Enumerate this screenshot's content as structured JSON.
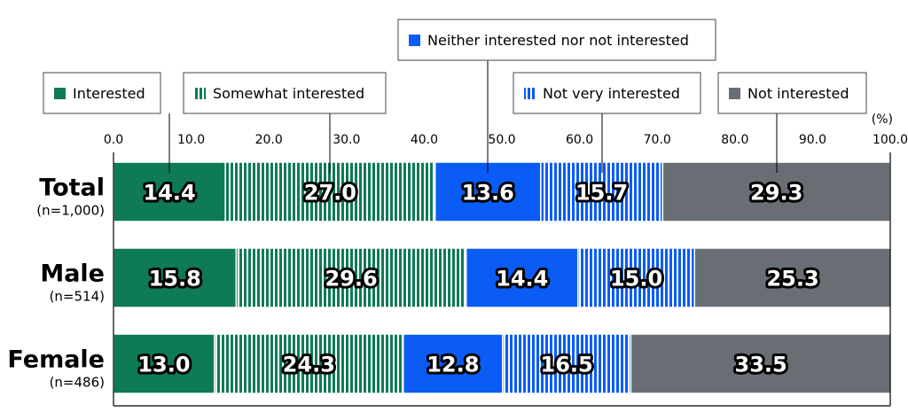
{
  "chart_data": {
    "type": "bar",
    "orientation": "horizontal",
    "stacked": true,
    "percent_axis": true,
    "unit_label": "(%)",
    "xlim": [
      0,
      100
    ],
    "ticks": [
      "0.0",
      "10.0",
      "20.0",
      "30.0",
      "40.0",
      "50.0",
      "60.0",
      "70.0",
      "80.0",
      "90.0",
      "100.0"
    ],
    "categories": [
      {
        "label": "Total",
        "n": "(n=1,000)"
      },
      {
        "label": "Male",
        "n": "(n=514)"
      },
      {
        "label": "Female",
        "n": "(n=486)"
      }
    ],
    "series": [
      {
        "name": "Interested",
        "color": "#0e7a57",
        "pattern": "solid",
        "values": [
          14.4,
          15.8,
          13.0
        ]
      },
      {
        "name": "Somewhat interested",
        "color": "#0e7a57",
        "pattern": "vertical-stripes",
        "values": [
          27.0,
          29.6,
          24.3
        ]
      },
      {
        "name": "Neither interested nor not interested",
        "color": "#0a5cf5",
        "pattern": "solid",
        "values": [
          13.6,
          14.4,
          12.8
        ]
      },
      {
        "name": "Not very interested",
        "color": "#0a5cf5",
        "pattern": "vertical-stripes",
        "values": [
          15.7,
          15.0,
          16.5
        ]
      },
      {
        "name": "Not interested",
        "color": "#686e74",
        "pattern": "solid",
        "values": [
          29.3,
          25.3,
          33.5
        ]
      }
    ],
    "legend_placement": "top-callouts",
    "grid": false
  }
}
